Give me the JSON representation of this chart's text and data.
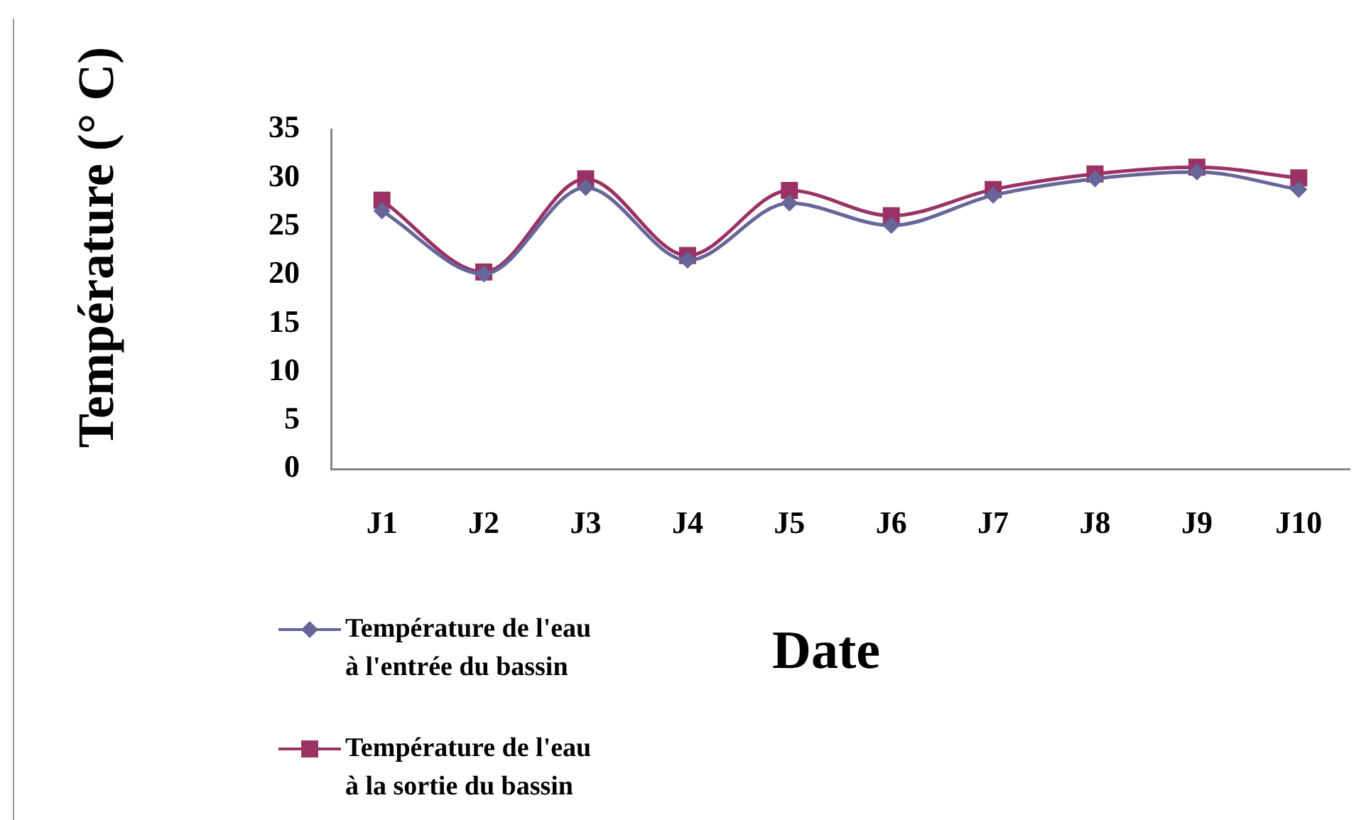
{
  "chart_data": {
    "type": "line",
    "xlabel": "Date",
    "ylabel": "Température (° C)",
    "categories": [
      "J1",
      "J2",
      "J3",
      "J4",
      "J5",
      "J6",
      "J7",
      "J8",
      "J9",
      "J10"
    ],
    "series": [
      {
        "name": "Température de l'eau à l'entrée du bassin",
        "color": "#666699",
        "marker": "diamond",
        "values": [
          26.6,
          20.1,
          29.0,
          21.5,
          27.4,
          25.1,
          28.2,
          29.9,
          30.6,
          28.8
        ]
      },
      {
        "name": "Température de l'eau à la sortie du bassin",
        "color": "#993366",
        "marker": "square",
        "values": [
          27.7,
          20.3,
          29.9,
          22.0,
          28.7,
          26.1,
          28.8,
          30.4,
          31.1,
          30.0
        ]
      }
    ],
    "ylim": [
      0,
      35
    ],
    "yticks": [
      0,
      5,
      10,
      15,
      20,
      25,
      30,
      35
    ],
    "grid": false,
    "legend": "bottom left",
    "line_style": "solid"
  }
}
